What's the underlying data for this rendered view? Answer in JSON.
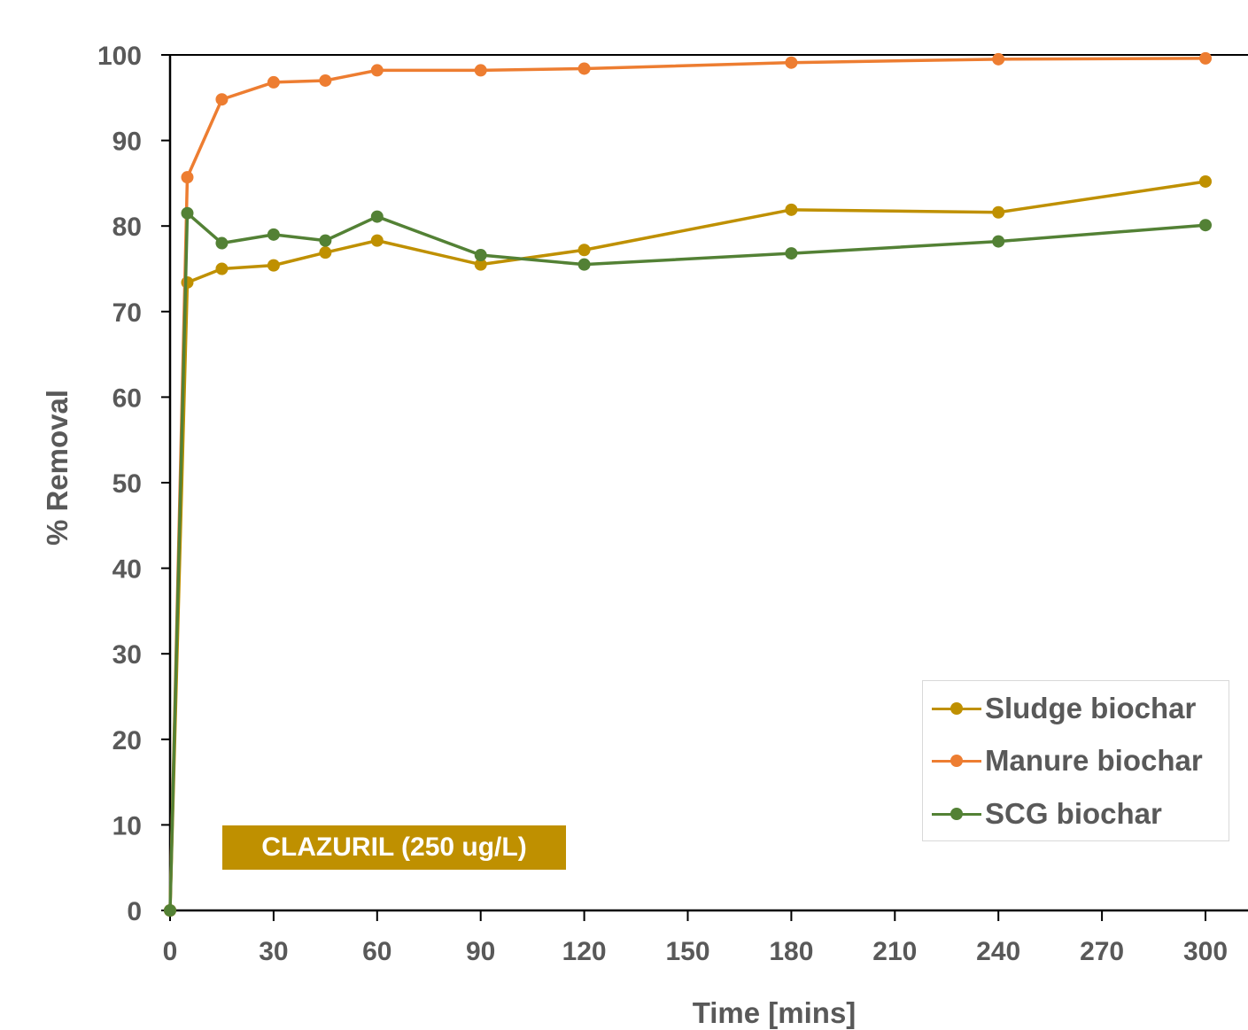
{
  "chart_data": {
    "type": "line",
    "xlabel": "Time [mins]",
    "ylabel": "% Removal",
    "xlim": [
      0,
      300
    ],
    "ylim": [
      0,
      100
    ],
    "xticks": [
      0,
      30,
      60,
      90,
      120,
      150,
      180,
      210,
      240,
      270,
      300
    ],
    "yticks": [
      0,
      10,
      20,
      30,
      40,
      50,
      60,
      70,
      80,
      90,
      100
    ],
    "grid": false,
    "legend_position": "bottom-right",
    "annotation": "CLAZURIL (250 ug/L)",
    "annotation_color": "#bf9000",
    "x": [
      0,
      5,
      15,
      30,
      45,
      60,
      90,
      120,
      180,
      240,
      300
    ],
    "series": [
      {
        "name": "Sludge biochar",
        "color": "#bf9000",
        "values": [
          0,
          73.4,
          75.0,
          75.4,
          76.9,
          78.3,
          75.5,
          77.2,
          81.9,
          81.6,
          85.2
        ]
      },
      {
        "name": "Manure biochar",
        "color": "#ed7d31",
        "values": [
          0,
          85.7,
          94.8,
          96.8,
          97.0,
          98.2,
          98.2,
          98.4,
          99.1,
          99.5,
          99.6
        ]
      },
      {
        "name": "SCG biochar",
        "color": "#538135",
        "values": [
          0,
          81.5,
          78.0,
          79.0,
          78.3,
          81.1,
          76.6,
          75.5,
          76.8,
          78.2,
          80.1
        ]
      }
    ]
  }
}
